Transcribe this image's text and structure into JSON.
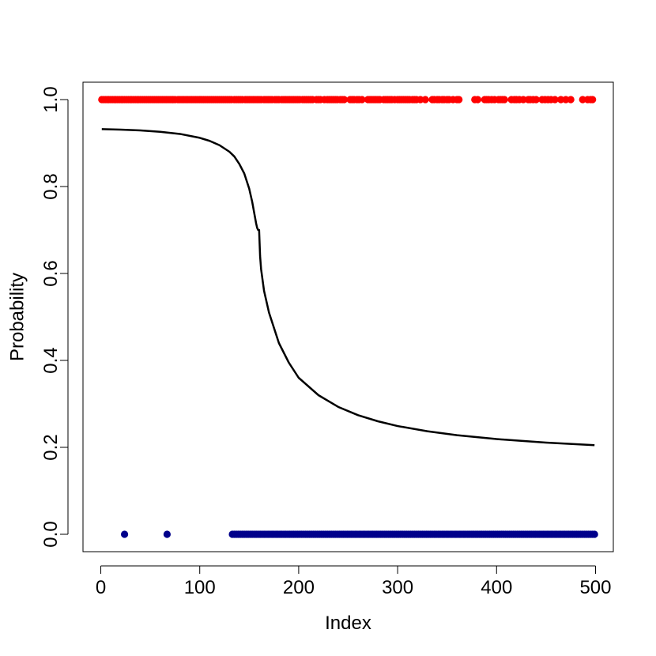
{
  "chart_data": {
    "type": "scatter",
    "xlabel": "Index",
    "ylabel": "Probability",
    "xlim": [
      -18,
      518
    ],
    "ylim": [
      -0.04,
      1.04
    ],
    "x_ticks": [
      0,
      100,
      200,
      300,
      400,
      500
    ],
    "y_ticks": [
      0.0,
      0.2,
      0.4,
      0.6,
      0.8,
      1.0
    ],
    "x_tick_labels": [
      "0",
      "100",
      "200",
      "300",
      "400",
      "500"
    ],
    "y_tick_labels": [
      "0.0",
      "0.2",
      "0.4",
      "0.6",
      "0.8",
      "1.0"
    ],
    "grid": false,
    "legend": "none",
    "colors": {
      "positive": "#ff0000",
      "negative": "#00008b",
      "curve": "#000000"
    },
    "series": [
      {
        "type": "scatter",
        "color": "#ff0000",
        "y": 1,
        "x": [
          1,
          3,
          5,
          7,
          8,
          10,
          12,
          14,
          15,
          17,
          19,
          21,
          22,
          24,
          26,
          28,
          30,
          31,
          33,
          35,
          37,
          38,
          40,
          42,
          44,
          46,
          48,
          50,
          52,
          54,
          56,
          58,
          60,
          62,
          64,
          66,
          68,
          70,
          72,
          73,
          75,
          78,
          80,
          82,
          84,
          86,
          88,
          90,
          92,
          94,
          96,
          98,
          100,
          102,
          104,
          106,
          108,
          110,
          112,
          114,
          116,
          118,
          120,
          122,
          124,
          126,
          128,
          130,
          132,
          135,
          137,
          139,
          141,
          143,
          146,
          148,
          150,
          152,
          154,
          156,
          158,
          160,
          162,
          165,
          167,
          169,
          171,
          173,
          176,
          178,
          180,
          183,
          185,
          187,
          189,
          191,
          193,
          195,
          197,
          199,
          201,
          204,
          206,
          208,
          210,
          212,
          214,
          218,
          220,
          222,
          226,
          229,
          231,
          233,
          235,
          237,
          239,
          242,
          244,
          246,
          252,
          254,
          256,
          259,
          261,
          264,
          270,
          272,
          274,
          276,
          278,
          280,
          282,
          286,
          288,
          290,
          292,
          294,
          297,
          300,
          302,
          304,
          306,
          308,
          310,
          312,
          315,
          317,
          319,
          323,
          328,
          335,
          337,
          340,
          342,
          345,
          347,
          350,
          352,
          356,
          360,
          362,
          378,
          381,
          388,
          390,
          392,
          395,
          398,
          402,
          404,
          406,
          408,
          415,
          418,
          420,
          423,
          427,
          432,
          434,
          437,
          440,
          446,
          449,
          452,
          455,
          459,
          465,
          470,
          475,
          487,
          492,
          495,
          497
        ]
      },
      {
        "type": "scatter",
        "color": "#00008b",
        "y": 0,
        "x": [
          24,
          67,
          133,
          135,
          137,
          139,
          141,
          143,
          145,
          147,
          149,
          151,
          153,
          155,
          157,
          159,
          161,
          163,
          165,
          167,
          169,
          171,
          173,
          175,
          177,
          179,
          181,
          183,
          185,
          187,
          189,
          191,
          193,
          195,
          197,
          199,
          201,
          203,
          205,
          207,
          209,
          211,
          213,
          215,
          217,
          219,
          221,
          223,
          225,
          227,
          229,
          231,
          233,
          235,
          237,
          239,
          241,
          243,
          245,
          247,
          249,
          251,
          253,
          255,
          257,
          259,
          261,
          263,
          265,
          267,
          269,
          271,
          273,
          275,
          277,
          279,
          281,
          283,
          285,
          287,
          289,
          291,
          293,
          295,
          297,
          299,
          301,
          303,
          305,
          307,
          309,
          311,
          313,
          315,
          317,
          319,
          321,
          323,
          325,
          327,
          329,
          331,
          333,
          335,
          337,
          339,
          341,
          343,
          345,
          347,
          349,
          351,
          353,
          355,
          357,
          359,
          361,
          363,
          365,
          367,
          369,
          371,
          373,
          375,
          377,
          379,
          381,
          383,
          385,
          387,
          389,
          391,
          393,
          395,
          397,
          399,
          401,
          403,
          405,
          407,
          409,
          411,
          413,
          415,
          417,
          419,
          421,
          423,
          425,
          427,
          429,
          431,
          433,
          435,
          437,
          439,
          441,
          443,
          445,
          447,
          449,
          451,
          453,
          455,
          457,
          459,
          461,
          463,
          465,
          467,
          469,
          471,
          473,
          475,
          477,
          479,
          481,
          483,
          485,
          487,
          489,
          491,
          493,
          495,
          497,
          499
        ]
      },
      {
        "type": "line",
        "color": "#000000",
        "x": [
          1,
          20,
          40,
          60,
          80,
          100,
          110,
          120,
          130,
          135,
          140,
          145,
          150,
          153,
          155,
          157,
          158,
          159,
          160,
          161,
          162,
          165,
          170,
          180,
          190,
          200,
          220,
          240,
          260,
          280,
          300,
          330,
          360,
          400,
          450,
          499
        ],
        "y": [
          0.932,
          0.931,
          0.929,
          0.926,
          0.921,
          0.912,
          0.905,
          0.895,
          0.88,
          0.869,
          0.852,
          0.83,
          0.795,
          0.765,
          0.74,
          0.715,
          0.705,
          0.7,
          0.7,
          0.64,
          0.61,
          0.56,
          0.51,
          0.44,
          0.395,
          0.36,
          0.32,
          0.293,
          0.274,
          0.26,
          0.249,
          0.237,
          0.228,
          0.219,
          0.211,
          0.205
        ]
      }
    ]
  }
}
